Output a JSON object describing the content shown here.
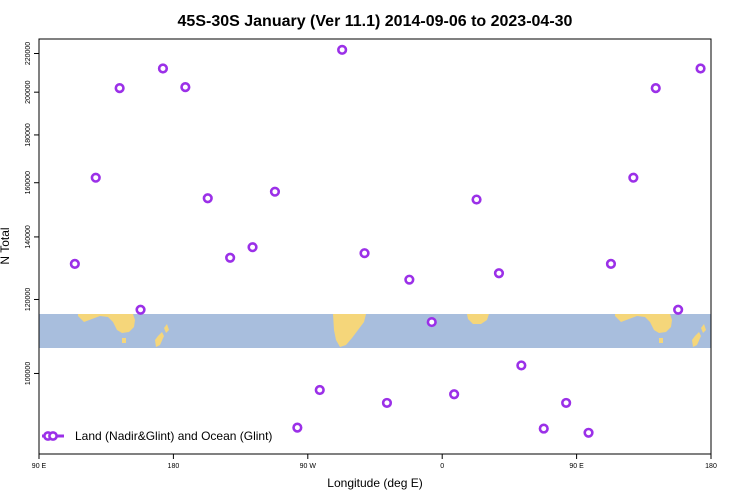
{
  "chart_data": {
    "type": "scatter",
    "title": "45S-30S January (Ver 11.1)   2014-09-06 to 2023-04-30",
    "xlabel": "Longitude (deg E)",
    "ylabel": "N Total",
    "x_ticks": [
      {
        "value": 90,
        "label": "90 E"
      },
      {
        "value": 180,
        "label": "180"
      },
      {
        "value": 270,
        "label": "90 W"
      },
      {
        "value": 360,
        "label": "0"
      },
      {
        "value": 450,
        "label": "90 E"
      },
      {
        "value": 540,
        "label": "180"
      }
    ],
    "y_ticks": [
      100000,
      120000,
      140000,
      160000,
      180000,
      200000,
      220000
    ],
    "xlim": [
      90,
      540
    ],
    "ylim": [
      82000,
      228000
    ],
    "y_scale": "log",
    "grid": false,
    "legend_position": "bottom-left",
    "marker_color": "#9b30e8",
    "land_color": "#f5d67a",
    "ocean_color": "#a8bedd",
    "series": [
      {
        "name": "Land (Nadir&Glint) and Ocean (Glint)",
        "points": [
          {
            "x": 114,
            "y": 131000
          },
          {
            "x": 128,
            "y": 162000
          },
          {
            "x": 144,
            "y": 202000
          },
          {
            "x": 158,
            "y": 117000
          },
          {
            "x": 173,
            "y": 212000
          },
          {
            "x": 188,
            "y": 202500
          },
          {
            "x": 203,
            "y": 154000
          },
          {
            "x": 218,
            "y": 133000
          },
          {
            "x": 233,
            "y": 136500
          },
          {
            "x": 248,
            "y": 156500
          },
          {
            "x": 263,
            "y": 87500
          },
          {
            "x": 278,
            "y": 96000
          },
          {
            "x": 293,
            "y": 222000
          },
          {
            "x": 308,
            "y": 134500
          },
          {
            "x": 323,
            "y": 93000
          },
          {
            "x": 338,
            "y": 126000
          },
          {
            "x": 353,
            "y": 113500
          },
          {
            "x": 368,
            "y": 95000
          },
          {
            "x": 383,
            "y": 153500
          },
          {
            "x": 398,
            "y": 128000
          },
          {
            "x": 413,
            "y": 102000
          },
          {
            "x": 428,
            "y": 87300
          },
          {
            "x": 443,
            "y": 93000
          },
          {
            "x": 458,
            "y": 86400
          },
          {
            "x": 473,
            "y": 131000
          },
          {
            "x": 488,
            "y": 162000
          },
          {
            "x": 503,
            "y": 202000
          },
          {
            "x": 518,
            "y": 117000
          },
          {
            "x": 533,
            "y": 212000
          }
        ]
      }
    ]
  }
}
